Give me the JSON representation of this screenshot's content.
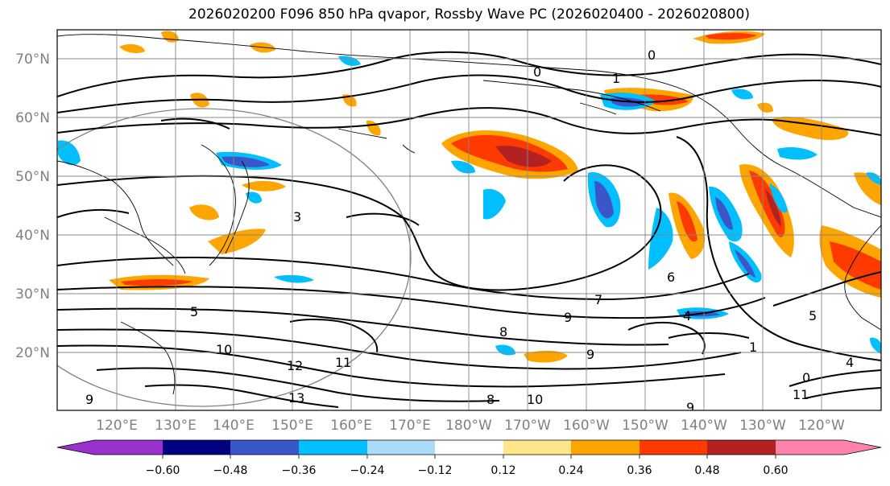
{
  "title": "2026020200 F096 850 hPa qvapor, Rossby Wave PC (2026020400 - 2026020800)",
  "latitude_labels": [
    "70°N",
    "60°N",
    "50°N",
    "40°N",
    "30°N",
    "20°N"
  ],
  "longitude_labels": [
    "120°E",
    "130°E",
    "140°E",
    "150°E",
    "160°E",
    "170°E",
    "180°W",
    "170°W",
    "160°W",
    "150°W",
    "140°W",
    "130°W",
    "120°W"
  ],
  "colorbar": {
    "tick_labels": [
      "−0.60",
      "−0.48",
      "−0.36",
      "−0.24",
      "−0.12",
      "0.12",
      "0.24",
      "0.36",
      "0.48",
      "0.60"
    ],
    "colors": [
      "#9932cc",
      "#000080",
      "#3a56c8",
      "#00bfff",
      "#aadcf8",
      "#ffffff",
      "#ffe68a",
      "#ffa500",
      "#ff3a00",
      "#b22222",
      "#ff82ab"
    ]
  },
  "contour_labels": [
    "0",
    "0",
    "1",
    "3",
    "5",
    "7",
    "8",
    "9",
    "10",
    "11",
    "12",
    "13",
    "9",
    "6",
    "4",
    "1",
    "0",
    "9",
    "11",
    "9",
    "8",
    "5",
    "10",
    "4"
  ]
}
